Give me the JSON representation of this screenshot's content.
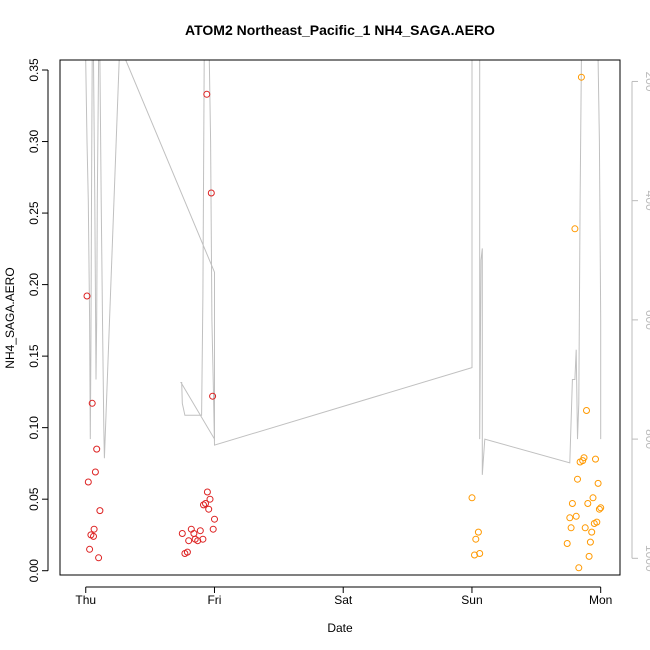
{
  "chart_data": {
    "type": "scatter",
    "title": "ATOM2 Northeast_Pacific_1 NH4_SAGA.AERO",
    "xlabel": "Date",
    "ylabel": "NH4_SAGA.AERO",
    "x_ticks": [
      "Thu",
      "Fri",
      "Sat",
      "Sun",
      "Mon"
    ],
    "x_units": "days since first tick (Thu = 0)",
    "xlim": [
      -0.2,
      4.15
    ],
    "ylim": [
      -0.003,
      0.357
    ],
    "y_ticks": [
      0.0,
      0.05,
      0.1,
      0.15,
      0.2,
      0.25,
      0.3,
      0.35
    ],
    "y_tick_labels": [
      "0.00",
      "0.05",
      "0.10",
      "0.15",
      "0.20",
      "0.25",
      "0.30",
      "0.35"
    ],
    "y2_ticks": [
      200,
      400,
      600,
      800,
      1000
    ],
    "y2_lim": [
      1028,
      164
    ],
    "y2_reversed": true,
    "series": [
      {
        "color": "#dd2222",
        "points": [
          [
            0.01,
            0.192
          ],
          [
            0.02,
            0.062
          ],
          [
            0.03,
            0.015
          ],
          [
            0.04,
            0.025
          ],
          [
            0.05,
            0.117
          ],
          [
            0.06,
            0.024
          ],
          [
            0.065,
            0.029
          ],
          [
            0.075,
            0.069
          ],
          [
            0.085,
            0.085
          ],
          [
            0.1,
            0.009
          ],
          [
            0.11,
            0.042
          ],
          [
            0.75,
            0.026
          ],
          [
            0.77,
            0.012
          ],
          [
            0.79,
            0.013
          ],
          [
            0.8,
            0.021
          ],
          [
            0.82,
            0.029
          ],
          [
            0.84,
            0.026
          ],
          [
            0.85,
            0.022
          ],
          [
            0.87,
            0.021
          ],
          [
            0.89,
            0.028
          ],
          [
            0.91,
            0.022
          ],
          [
            0.915,
            0.046
          ],
          [
            0.93,
            0.047
          ],
          [
            0.94,
            0.333
          ],
          [
            0.945,
            0.055
          ],
          [
            0.955,
            0.043
          ],
          [
            0.965,
            0.05
          ],
          [
            0.975,
            0.264
          ],
          [
            0.985,
            0.122
          ],
          [
            0.99,
            0.029
          ],
          [
            1.0,
            0.036
          ]
        ]
      },
      {
        "color": "#ff9900",
        "points": [
          [
            3.0,
            0.051
          ],
          [
            3.02,
            0.011
          ],
          [
            3.03,
            0.022
          ],
          [
            3.05,
            0.027
          ],
          [
            3.06,
            0.012
          ],
          [
            3.74,
            0.019
          ],
          [
            3.76,
            0.037
          ],
          [
            3.77,
            0.03
          ],
          [
            3.78,
            0.047
          ],
          [
            3.8,
            0.239
          ],
          [
            3.81,
            0.038
          ],
          [
            3.82,
            0.064
          ],
          [
            3.83,
            0.002
          ],
          [
            3.84,
            0.076
          ],
          [
            3.85,
            0.345
          ],
          [
            3.86,
            0.077
          ],
          [
            3.87,
            0.079
          ],
          [
            3.88,
            0.03
          ],
          [
            3.89,
            0.112
          ],
          [
            3.9,
            0.047
          ],
          [
            3.91,
            0.01
          ],
          [
            3.92,
            0.02
          ],
          [
            3.93,
            0.027
          ],
          [
            3.94,
            0.051
          ],
          [
            3.95,
            0.033
          ],
          [
            3.96,
            0.078
          ],
          [
            3.97,
            0.034
          ],
          [
            3.98,
            0.061
          ],
          [
            3.99,
            0.043
          ],
          [
            4.0,
            0.044
          ]
        ]
      }
    ],
    "secondary_line": {
      "color": "#c0c0c0",
      "points": [
        [
          0.0,
          164
        ],
        [
          0.01,
          300
        ],
        [
          0.02,
          400
        ],
        [
          0.03,
          600
        ],
        [
          0.035,
          800
        ],
        [
          0.04,
          650
        ],
        [
          0.045,
          400
        ],
        [
          0.05,
          164
        ],
        [
          0.06,
          164
        ],
        [
          0.07,
          400
        ],
        [
          0.08,
          700
        ],
        [
          0.085,
          600
        ],
        [
          0.09,
          400
        ],
        [
          0.1,
          164
        ],
        [
          0.11,
          164
        ],
        [
          0.12,
          400
        ],
        [
          0.13,
          600
        ],
        [
          0.14,
          780
        ],
        [
          0.145,
          832
        ],
        [
          0.26,
          164
        ],
        [
          0.26,
          164
        ],
        [
          0.31,
          164
        ],
        [
          1.0,
          520
        ],
        [
          1.0,
          800
        ],
        [
          0.74,
          705
        ],
        [
          0.745,
          705
        ],
        [
          0.75,
          740
        ],
        [
          0.77,
          760
        ],
        [
          0.8,
          760
        ],
        [
          0.82,
          760
        ],
        [
          0.84,
          760
        ],
        [
          0.86,
          760
        ],
        [
          0.88,
          760
        ],
        [
          0.9,
          760
        ],
        [
          0.91,
          560
        ],
        [
          0.92,
          164
        ],
        [
          0.93,
          164
        ],
        [
          0.94,
          164
        ],
        [
          0.95,
          164
        ],
        [
          0.96,
          164
        ],
        [
          0.97,
          300
        ],
        [
          0.98,
          600
        ],
        [
          0.99,
          700
        ],
        [
          1.0,
          810
        ],
        [
          3.0,
          680
        ],
        [
          3.0,
          164
        ],
        [
          3.02,
          164
        ],
        [
          3.03,
          164
        ],
        [
          3.05,
          164
        ],
        [
          3.06,
          164
        ],
        [
          3.06,
          800
        ],
        [
          3.07,
          500
        ],
        [
          3.08,
          480
        ],
        [
          3.08,
          860
        ],
        [
          3.1,
          800
        ],
        [
          3.76,
          840
        ],
        [
          3.78,
          700
        ],
        [
          3.8,
          700
        ],
        [
          3.81,
          650
        ],
        [
          3.82,
          800
        ],
        [
          3.83,
          740
        ],
        [
          3.84,
          400
        ],
        [
          3.85,
          164
        ],
        [
          3.86,
          164
        ],
        [
          3.87,
          164
        ],
        [
          3.88,
          164
        ],
        [
          3.9,
          164
        ],
        [
          3.91,
          164
        ],
        [
          3.92,
          164
        ],
        [
          3.93,
          164
        ],
        [
          3.94,
          164
        ],
        [
          3.95,
          164
        ],
        [
          3.96,
          164
        ],
        [
          3.97,
          164
        ],
        [
          3.98,
          164
        ],
        [
          3.99,
          300
        ],
        [
          4.0,
          600
        ],
        [
          4.0,
          800
        ]
      ]
    },
    "grid": false,
    "legend": "none"
  }
}
